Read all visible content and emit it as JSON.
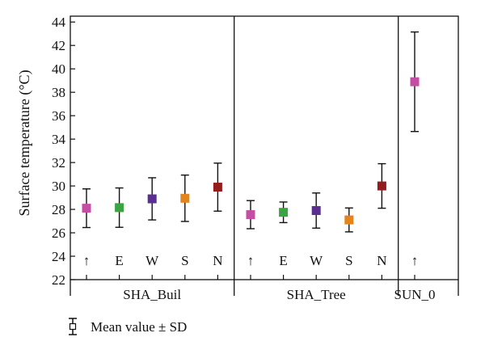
{
  "chart_data": {
    "type": "scatter",
    "ylabel": "Surface temperature (°C)",
    "ylim": [
      22,
      44.5
    ],
    "yticks": [
      22,
      24,
      26,
      28,
      30,
      32,
      34,
      36,
      38,
      40,
      42,
      44
    ],
    "groups": [
      {
        "name": "SHA_Buil",
        "count": 5
      },
      {
        "name": "SHA_Tree",
        "count": 5
      },
      {
        "name": "SUN_0",
        "count": 1
      }
    ],
    "points": [
      {
        "label": "↑",
        "group": "SHA_Buil",
        "mean": 28.1,
        "sd": 1.65,
        "color": "#c34ea4"
      },
      {
        "label": "E",
        "group": "SHA_Buil",
        "mean": 28.15,
        "sd": 1.68,
        "color": "#3aa342"
      },
      {
        "label": "W",
        "group": "SHA_Buil",
        "mean": 28.9,
        "sd": 1.8,
        "color": "#5b2e91"
      },
      {
        "label": "S",
        "group": "SHA_Buil",
        "mean": 28.95,
        "sd": 1.98,
        "color": "#e2851c"
      },
      {
        "label": "N",
        "group": "SHA_Buil",
        "mean": 29.9,
        "sd": 2.05,
        "color": "#931d1d"
      },
      {
        "label": "↑",
        "group": "SHA_Tree",
        "mean": 27.55,
        "sd": 1.2,
        "color": "#c34ea4"
      },
      {
        "label": "E",
        "group": "SHA_Tree",
        "mean": 27.75,
        "sd": 0.88,
        "color": "#3aa342"
      },
      {
        "label": "W",
        "group": "SHA_Tree",
        "mean": 27.9,
        "sd": 1.5,
        "color": "#5b2e91"
      },
      {
        "label": "S",
        "group": "SHA_Tree",
        "mean": 27.1,
        "sd": 1.02,
        "color": "#e2851c"
      },
      {
        "label": "N",
        "group": "SHA_Tree",
        "mean": 30.0,
        "sd": 1.9,
        "color": "#931d1d"
      },
      {
        "label": "↑",
        "group": "SUN_0",
        "mean": 38.9,
        "sd": 4.25,
        "color": "#c34ea4"
      }
    ],
    "legend": {
      "text": "Mean value ± SD",
      "position": "bottom-left"
    },
    "grid": false
  }
}
